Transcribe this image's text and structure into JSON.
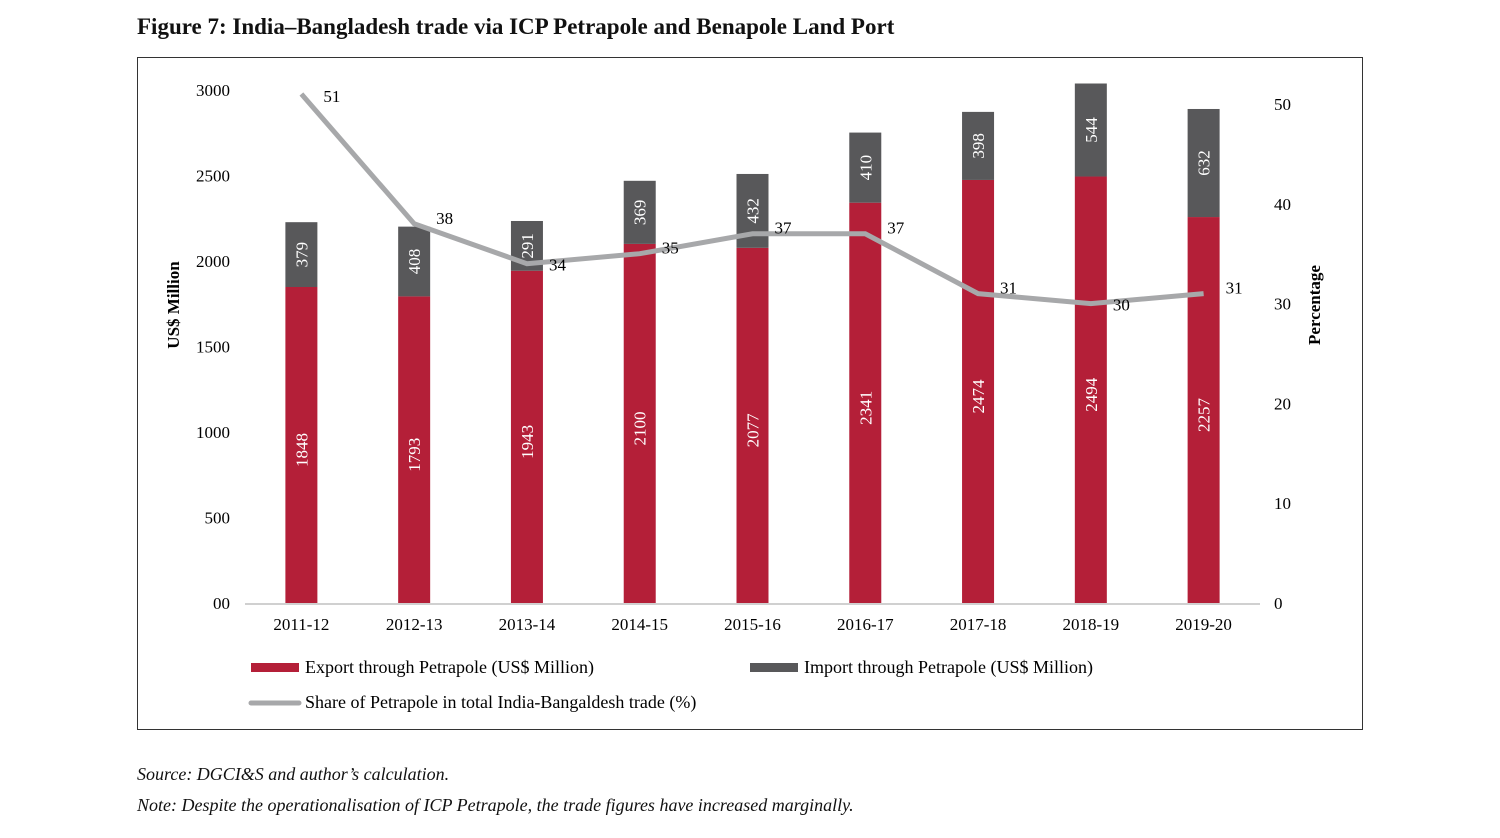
{
  "title": "Figure 7: India–Bangladesh trade via ICP Petrapole and Benapole Land Port",
  "source": "Source: DGCI&S and author’s calculation.",
  "note": "Note: Despite the operationalisation of ICP Petrapole, the trade figures have increased marginally.",
  "chart_data": {
    "type": "bar+line",
    "stacked": true,
    "categories": [
      "2011-12",
      "2012-13",
      "2013-14",
      "2014-15",
      "2015-16",
      "2016-17",
      "2017-18",
      "2018-19",
      "2019-20"
    ],
    "series": [
      {
        "name": "Export through Petrapole (US$ Million)",
        "type": "bar",
        "axis": "left",
        "color": "#b41f38",
        "values": [
          1848,
          1793,
          1943,
          2100,
          2077,
          2341,
          2474,
          2494,
          2257
        ]
      },
      {
        "name": "Import through Petrapole (US$ Million)",
        "type": "bar",
        "axis": "left",
        "color": "#58585a",
        "values": [
          379,
          408,
          291,
          369,
          432,
          410,
          398,
          544,
          632
        ]
      },
      {
        "name": "Share of Petrapole in total India-Bangaldesh trade (%)",
        "type": "line",
        "axis": "right",
        "color": "#a7a8aa",
        "values": [
          51,
          38,
          34,
          35,
          37,
          37,
          31,
          30,
          31
        ]
      }
    ],
    "ylabel": "US$ Million",
    "y2label": "Percentage",
    "ylim": [
      0,
      3000
    ],
    "y2lim": [
      0,
      50
    ],
    "yticks": [
      "00",
      "500",
      "1000",
      "1500",
      "2000",
      "2500",
      "3000"
    ],
    "y2ticks": [
      "0",
      "10",
      "20",
      "30",
      "40",
      "50"
    ],
    "grid": false,
    "legend": "bottom"
  }
}
